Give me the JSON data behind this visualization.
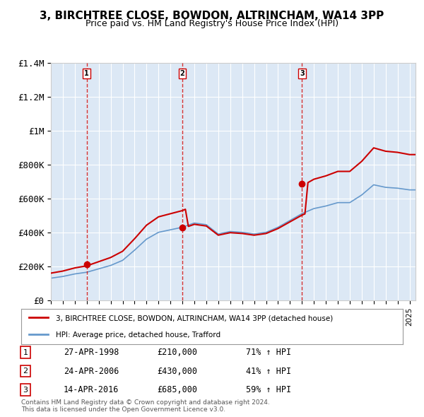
{
  "title": "3, BIRCHTREE CLOSE, BOWDON, ALTRINCHAM, WA14 3PP",
  "subtitle": "Price paid vs. HM Land Registry's House Price Index (HPI)",
  "purchase_years": [
    1998,
    2006,
    2016
  ],
  "purchase_prices": [
    210000,
    430000,
    685000
  ],
  "purchase_labels": [
    "1",
    "2",
    "3"
  ],
  "purchase_dates": [
    "27-APR-1998",
    "24-APR-2006",
    "14-APR-2016"
  ],
  "purchase_pct": [
    "71%",
    "41%",
    "59%"
  ],
  "legend_property": "3, BIRCHTREE CLOSE, BOWDON, ALTRINCHAM, WA14 3PP (detached house)",
  "legend_hpi": "HPI: Average price, detached house, Trafford",
  "property_color": "#cc0000",
  "hpi_color": "#6699cc",
  "vline_color": "#cc0000",
  "ylim": [
    0,
    1400000
  ],
  "xlim_start": 1995,
  "xlim_end": 2025.5,
  "background_color": "#dce8f5",
  "plot_bg": "#dce8f5",
  "footer": "Contains HM Land Registry data © Crown copyright and database right 2024.\nThis data is licensed under the Open Government Licence v3.0.",
  "yticks": [
    0,
    200000,
    400000,
    600000,
    800000,
    1000000,
    1200000,
    1400000
  ],
  "ytick_labels": [
    "£0",
    "£200K",
    "£400K",
    "£600K",
    "£800K",
    "£1M",
    "£1.2M",
    "£1.4M"
  ]
}
